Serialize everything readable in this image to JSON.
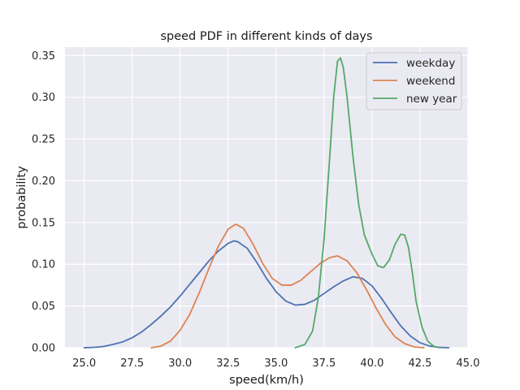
{
  "chart_data": {
    "type": "line",
    "title": "speed PDF in different kinds of days",
    "xlabel": "speed(km/h)",
    "ylabel": "probability",
    "xlim": [
      24.0,
      45.0
    ],
    "ylim": [
      0.0,
      0.36
    ],
    "xticks": [
      "25.0",
      "27.5",
      "30.0",
      "32.5",
      "35.0",
      "37.5",
      "40.0",
      "42.5",
      "45.0"
    ],
    "yticks": [
      "0.00",
      "0.05",
      "0.10",
      "0.15",
      "0.20",
      "0.25",
      "0.30",
      "0.35"
    ],
    "grid": true,
    "legend_position": "top-right",
    "background": "#eaeaf2",
    "series": [
      {
        "name": "weekday",
        "color": "#4c72b0",
        "points": [
          [
            25.0,
            0.0
          ],
          [
            25.5,
            0.0005
          ],
          [
            26.0,
            0.0015
          ],
          [
            26.5,
            0.004
          ],
          [
            27.0,
            0.007
          ],
          [
            27.5,
            0.012
          ],
          [
            28.0,
            0.019
          ],
          [
            28.5,
            0.028
          ],
          [
            29.0,
            0.038
          ],
          [
            29.5,
            0.049
          ],
          [
            30.0,
            0.062
          ],
          [
            30.5,
            0.076
          ],
          [
            31.0,
            0.09
          ],
          [
            31.5,
            0.104
          ],
          [
            32.0,
            0.116
          ],
          [
            32.5,
            0.125
          ],
          [
            32.8,
            0.128
          ],
          [
            33.0,
            0.127
          ],
          [
            33.5,
            0.119
          ],
          [
            34.0,
            0.102
          ],
          [
            34.5,
            0.083
          ],
          [
            35.0,
            0.067
          ],
          [
            35.5,
            0.056
          ],
          [
            36.0,
            0.051
          ],
          [
            36.5,
            0.052
          ],
          [
            37.0,
            0.057
          ],
          [
            37.5,
            0.065
          ],
          [
            38.0,
            0.073
          ],
          [
            38.5,
            0.08
          ],
          [
            39.0,
            0.085
          ],
          [
            39.5,
            0.083
          ],
          [
            40.0,
            0.074
          ],
          [
            40.5,
            0.059
          ],
          [
            41.0,
            0.042
          ],
          [
            41.5,
            0.026
          ],
          [
            42.0,
            0.014
          ],
          [
            42.5,
            0.006
          ],
          [
            43.0,
            0.002
          ],
          [
            43.5,
            0.0005
          ],
          [
            44.0,
            0.0
          ]
        ]
      },
      {
        "name": "weekend",
        "color": "#dd8452",
        "points": [
          [
            28.5,
            0.0
          ],
          [
            29.0,
            0.002
          ],
          [
            29.5,
            0.008
          ],
          [
            30.0,
            0.021
          ],
          [
            30.5,
            0.04
          ],
          [
            31.0,
            0.066
          ],
          [
            31.5,
            0.095
          ],
          [
            32.0,
            0.122
          ],
          [
            32.5,
            0.142
          ],
          [
            32.9,
            0.148
          ],
          [
            33.3,
            0.143
          ],
          [
            33.8,
            0.124
          ],
          [
            34.3,
            0.101
          ],
          [
            34.8,
            0.083
          ],
          [
            35.3,
            0.075
          ],
          [
            35.8,
            0.075
          ],
          [
            36.3,
            0.081
          ],
          [
            36.8,
            0.091
          ],
          [
            37.3,
            0.101
          ],
          [
            37.8,
            0.108
          ],
          [
            38.2,
            0.11
          ],
          [
            38.7,
            0.104
          ],
          [
            39.2,
            0.09
          ],
          [
            39.7,
            0.07
          ],
          [
            40.2,
            0.048
          ],
          [
            40.7,
            0.028
          ],
          [
            41.2,
            0.013
          ],
          [
            41.7,
            0.005
          ],
          [
            42.2,
            0.001
          ],
          [
            42.7,
            0.0
          ]
        ]
      },
      {
        "name": "new year",
        "color": "#55a868",
        "points": [
          [
            36.0,
            0.0
          ],
          [
            36.5,
            0.004
          ],
          [
            36.9,
            0.02
          ],
          [
            37.2,
            0.06
          ],
          [
            37.5,
            0.13
          ],
          [
            37.8,
            0.23
          ],
          [
            38.0,
            0.3
          ],
          [
            38.2,
            0.343
          ],
          [
            38.35,
            0.347
          ],
          [
            38.5,
            0.336
          ],
          [
            38.7,
            0.3
          ],
          [
            39.0,
            0.23
          ],
          [
            39.3,
            0.172
          ],
          [
            39.6,
            0.135
          ],
          [
            40.0,
            0.112
          ],
          [
            40.3,
            0.098
          ],
          [
            40.6,
            0.096
          ],
          [
            40.9,
            0.105
          ],
          [
            41.2,
            0.124
          ],
          [
            41.5,
            0.136
          ],
          [
            41.7,
            0.135
          ],
          [
            41.9,
            0.12
          ],
          [
            42.1,
            0.09
          ],
          [
            42.3,
            0.055
          ],
          [
            42.6,
            0.025
          ],
          [
            42.9,
            0.008
          ],
          [
            43.2,
            0.002
          ],
          [
            43.5,
            0.0
          ]
        ]
      }
    ]
  }
}
